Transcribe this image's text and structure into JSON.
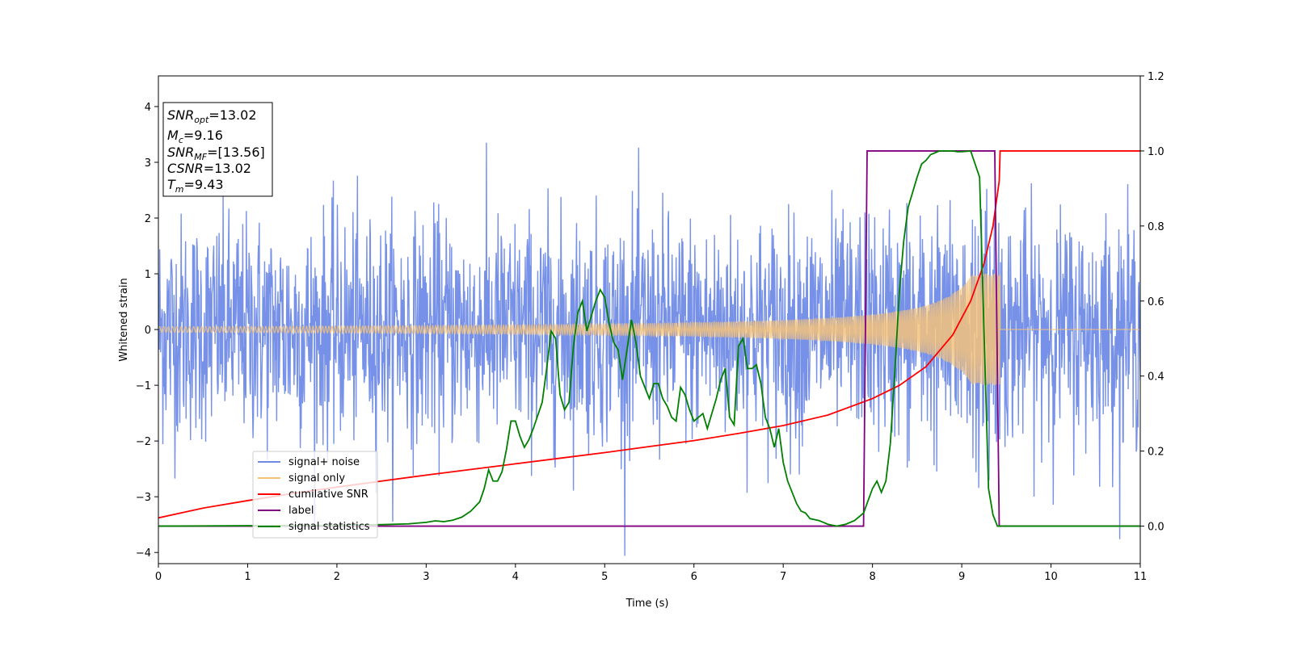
{
  "chart_data": {
    "type": "line",
    "xlabel": "Time (s)",
    "ylabel": "Whitened strain",
    "xlim": [
      0,
      11
    ],
    "ylim_left": [
      -4.2,
      4.55
    ],
    "ylim_right": [
      -0.1,
      1.2
    ],
    "x_ticks": [
      0,
      1,
      2,
      3,
      4,
      5,
      6,
      7,
      8,
      9,
      10,
      11
    ],
    "y_ticks_left": [
      -4,
      -3,
      -2,
      -1,
      0,
      1,
      2,
      3,
      4
    ],
    "y_ticks_right": [
      0.0,
      0.2,
      0.4,
      0.6,
      0.8,
      1.0,
      1.2
    ],
    "grid": false,
    "legend_position": "lower-left",
    "stats_box": {
      "snr_opt": {
        "sym": "SNR",
        "sub": "opt",
        "val": "=13.02"
      },
      "mc": {
        "sym": "M",
        "sub": "c",
        "val": "=9.16"
      },
      "snr_mf": {
        "sym": "SNR",
        "sub": "MF",
        "val": "=[13.56]"
      },
      "csnr": {
        "sym": "CSNR",
        "sub": "",
        "val": "=13.02"
      },
      "tm": {
        "sym": "T",
        "sub": "m",
        "val": "=9.43"
      }
    },
    "series": [
      {
        "name": "signal+ noise",
        "axis": "left",
        "color": "#6f8be6",
        "description_values": {
          "sigma": 1.0,
          "sample_rate_hz": 200,
          "x_start": 0,
          "x_end": 11
        }
      },
      {
        "name": "signal only",
        "axis": "left",
        "color": "#f5c27a",
        "chirp": {
          "t_merge": 9.43,
          "amp_start": 0.05,
          "amp_peak": 1.0,
          "f_start": 20,
          "f_end": 60
        }
      },
      {
        "name": "cumilative SNR",
        "axis": "right",
        "color": "#ff0000",
        "x": [
          0,
          0.5,
          1,
          1.5,
          2,
          2.5,
          3,
          3.5,
          4,
          4.5,
          5,
          5.5,
          6,
          6.5,
          7,
          7.5,
          8,
          8.3,
          8.6,
          8.9,
          9.1,
          9.25,
          9.35,
          9.42,
          9.43,
          11
        ],
        "y": [
          0.022,
          0.048,
          0.068,
          0.087,
          0.104,
          0.12,
          0.136,
          0.151,
          0.166,
          0.181,
          0.196,
          0.212,
          0.228,
          0.247,
          0.268,
          0.296,
          0.34,
          0.375,
          0.425,
          0.51,
          0.6,
          0.7,
          0.8,
          0.92,
          1.0,
          1.0
        ]
      },
      {
        "name": "label",
        "axis": "right",
        "color": "#800080",
        "x": [
          0,
          7.9,
          7.94,
          9.37,
          9.42,
          11
        ],
        "y": [
          0.0,
          0.0,
          1.0,
          1.0,
          0.0,
          0.0
        ]
      },
      {
        "name": "signal statistics",
        "axis": "right",
        "color": "#008000",
        "x": [
          0,
          1,
          2,
          2.5,
          2.8,
          3.0,
          3.1,
          3.2,
          3.3,
          3.4,
          3.5,
          3.6,
          3.65,
          3.7,
          3.75,
          3.8,
          3.85,
          3.9,
          3.95,
          4.0,
          4.05,
          4.1,
          4.15,
          4.2,
          4.3,
          4.35,
          4.4,
          4.45,
          4.5,
          4.55,
          4.6,
          4.65,
          4.7,
          4.75,
          4.8,
          4.85,
          4.9,
          4.95,
          5.0,
          5.05,
          5.1,
          5.15,
          5.2,
          5.25,
          5.3,
          5.35,
          5.4,
          5.45,
          5.5,
          5.55,
          5.6,
          5.65,
          5.7,
          5.75,
          5.8,
          5.85,
          5.9,
          5.95,
          6.0,
          6.05,
          6.1,
          6.15,
          6.2,
          6.25,
          6.3,
          6.35,
          6.4,
          6.45,
          6.5,
          6.55,
          6.6,
          6.65,
          6.7,
          6.75,
          6.8,
          6.85,
          6.9,
          6.95,
          7.0,
          7.05,
          7.1,
          7.15,
          7.2,
          7.25,
          7.3,
          7.4,
          7.5,
          7.6,
          7.7,
          7.8,
          7.9,
          8.0,
          8.05,
          8.1,
          8.15,
          8.2,
          8.25,
          8.3,
          8.35,
          8.4,
          8.45,
          8.5,
          8.55,
          8.6,
          8.65,
          8.7,
          8.75,
          8.8,
          8.85,
          8.9,
          8.95,
          9.0,
          9.1,
          9.2,
          9.3,
          9.35,
          9.4,
          9.45,
          9.5,
          10,
          11
        ],
        "y": [
          0.0,
          0.001,
          0.002,
          0.004,
          0.006,
          0.01,
          0.014,
          0.012,
          0.016,
          0.024,
          0.04,
          0.065,
          0.1,
          0.15,
          0.12,
          0.12,
          0.145,
          0.205,
          0.28,
          0.28,
          0.24,
          0.21,
          0.23,
          0.26,
          0.33,
          0.42,
          0.52,
          0.5,
          0.35,
          0.31,
          0.33,
          0.48,
          0.57,
          0.6,
          0.52,
          0.56,
          0.6,
          0.63,
          0.61,
          0.54,
          0.49,
          0.47,
          0.39,
          0.47,
          0.55,
          0.49,
          0.4,
          0.37,
          0.34,
          0.38,
          0.38,
          0.34,
          0.32,
          0.29,
          0.28,
          0.37,
          0.35,
          0.31,
          0.28,
          0.29,
          0.3,
          0.26,
          0.3,
          0.34,
          0.39,
          0.42,
          0.29,
          0.27,
          0.48,
          0.5,
          0.42,
          0.42,
          0.43,
          0.38,
          0.29,
          0.26,
          0.21,
          0.26,
          0.17,
          0.12,
          0.09,
          0.06,
          0.04,
          0.035,
          0.02,
          0.015,
          0.005,
          0.0,
          0.005,
          0.015,
          0.035,
          0.1,
          0.12,
          0.09,
          0.12,
          0.22,
          0.41,
          0.62,
          0.76,
          0.85,
          0.89,
          0.93,
          0.965,
          0.975,
          0.99,
          0.995,
          1.0,
          1.0,
          1.0,
          1.0,
          0.998,
          0.998,
          1.0,
          0.93,
          0.1,
          0.03,
          0.0,
          0.0,
          0.0,
          0.0,
          0.0
        ]
      }
    ]
  }
}
